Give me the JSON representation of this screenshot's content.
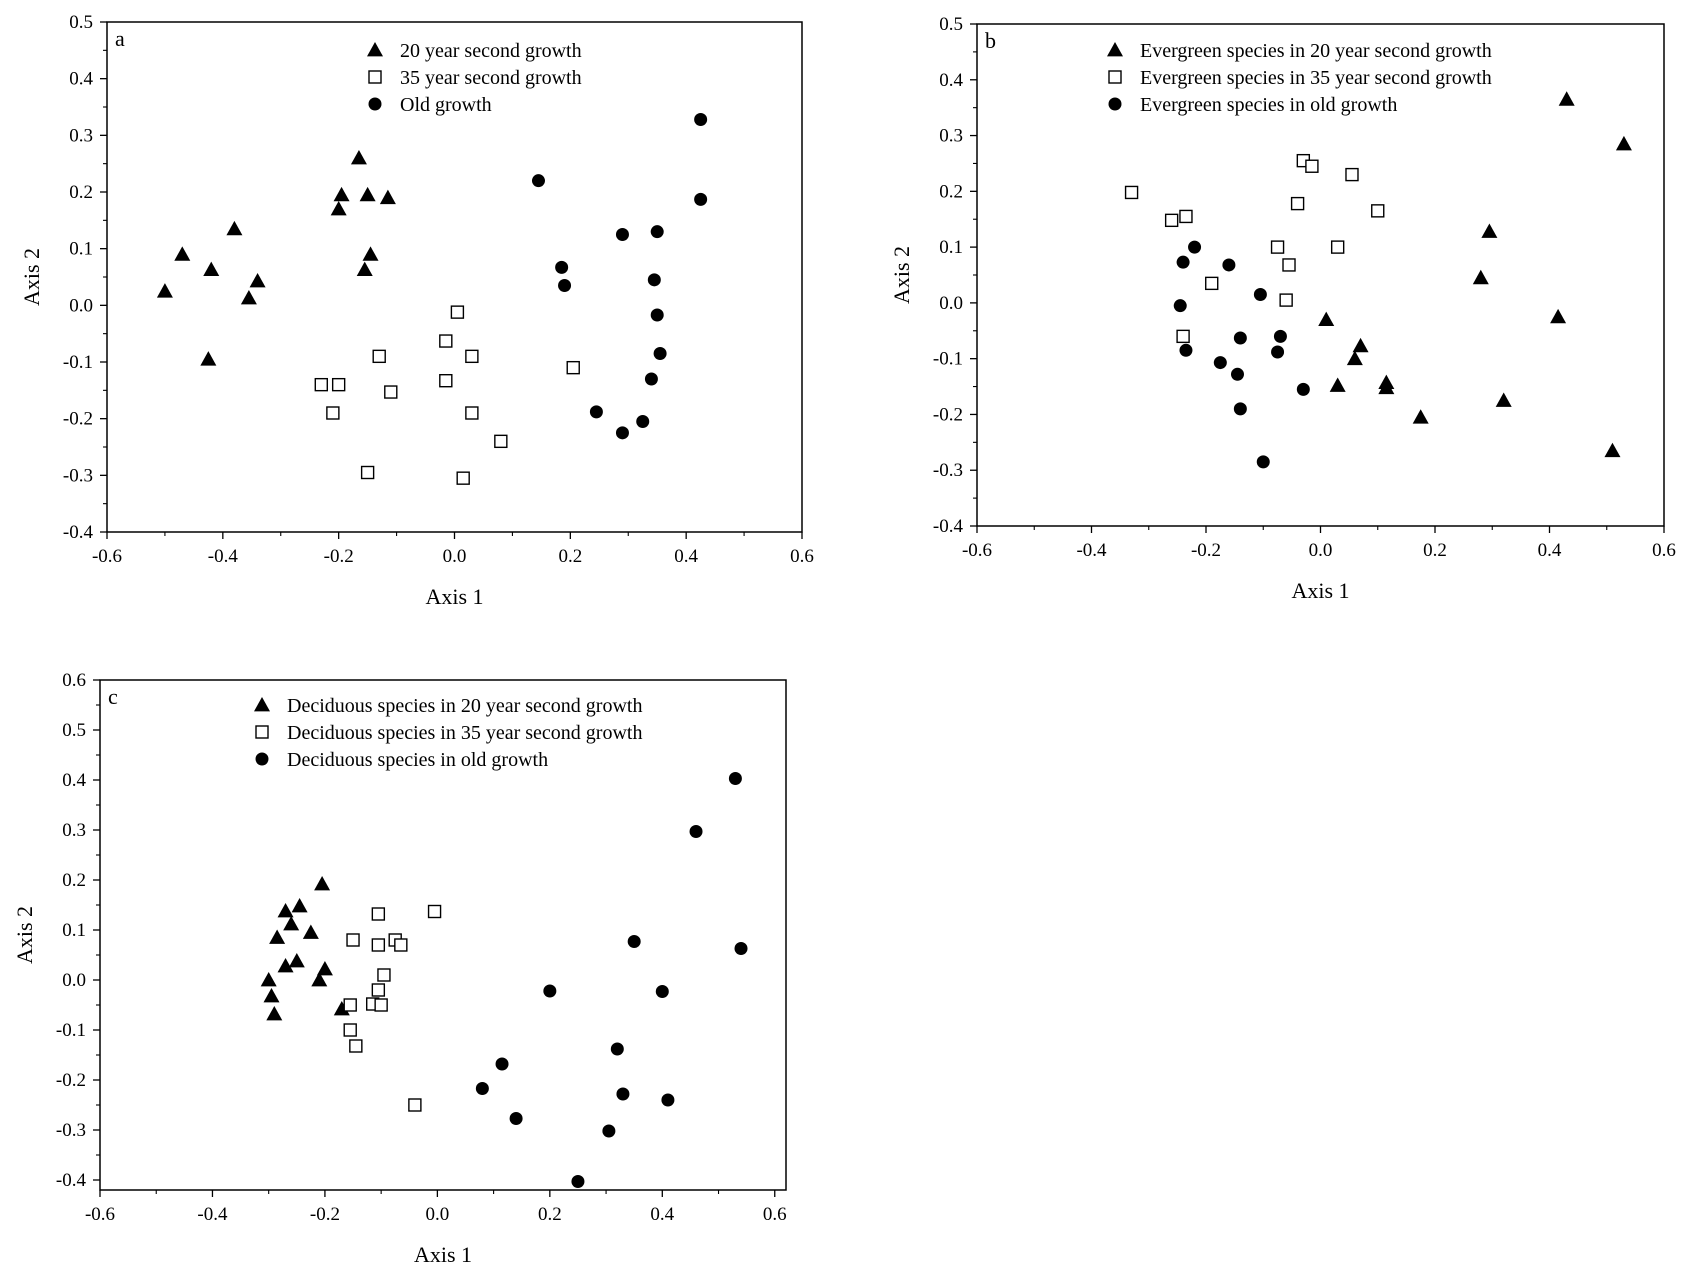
{
  "chart_data": [
    {
      "type": "scatter",
      "panel_label": "a",
      "xlabel": "Axis 1",
      "ylabel": "Axis 2",
      "xlim": [
        -0.6,
        0.6
      ],
      "ylim": [
        -0.4,
        0.5
      ],
      "xticks": [
        -0.6,
        -0.4,
        -0.2,
        0.0,
        0.2,
        0.4,
        0.6
      ],
      "yticks": [
        -0.4,
        -0.3,
        -0.2,
        -0.1,
        0.0,
        0.1,
        0.2,
        0.3,
        0.4,
        0.5
      ],
      "xtick_labels": [
        "-0.6",
        "-0.4",
        "-0.2",
        "0.0",
        "0.2",
        "0.4",
        "0.6"
      ],
      "ytick_labels": [
        "-0.4",
        "-0.3",
        "-0.2",
        "-0.1",
        "0.0",
        "0.1",
        "0.2",
        "0.3",
        "0.4",
        "0.5"
      ],
      "legend_position": "top-center",
      "series": [
        {
          "name": "20 year second growth",
          "marker": "filled-triangle",
          "color": "#000000",
          "points": [
            [
              -0.5,
              0.025
            ],
            [
              -0.47,
              0.09
            ],
            [
              -0.42,
              0.063
            ],
            [
              -0.38,
              0.135
            ],
            [
              -0.355,
              0.013
            ],
            [
              -0.34,
              0.043
            ],
            [
              -0.425,
              -0.095
            ],
            [
              -0.2,
              0.17
            ],
            [
              -0.195,
              0.195
            ],
            [
              -0.165,
              0.26
            ],
            [
              -0.15,
              0.195
            ],
            [
              -0.145,
              0.09
            ],
            [
              -0.155,
              0.063
            ],
            [
              -0.115,
              0.19
            ]
          ]
        },
        {
          "name": "35 year second growth",
          "marker": "open-square",
          "color": "#000000",
          "points": [
            [
              0.005,
              -0.012
            ],
            [
              -0.015,
              -0.063
            ],
            [
              0.03,
              -0.09
            ],
            [
              -0.13,
              -0.09
            ],
            [
              -0.23,
              -0.14
            ],
            [
              -0.2,
              -0.14
            ],
            [
              -0.015,
              -0.133
            ],
            [
              -0.11,
              -0.153
            ],
            [
              -0.21,
              -0.19
            ],
            [
              0.03,
              -0.19
            ],
            [
              0.08,
              -0.24
            ],
            [
              -0.15,
              -0.295
            ],
            [
              0.015,
              -0.305
            ],
            [
              0.205,
              -0.11
            ]
          ]
        },
        {
          "name": "Old growth",
          "marker": "filled-circle",
          "color": "#000000",
          "points": [
            [
              0.145,
              0.22
            ],
            [
              0.425,
              0.328
            ],
            [
              0.425,
              0.187
            ],
            [
              0.29,
              0.125
            ],
            [
              0.35,
              0.13
            ],
            [
              0.185,
              0.067
            ],
            [
              0.19,
              0.035
            ],
            [
              0.345,
              0.045
            ],
            [
              0.35,
              -0.017
            ],
            [
              0.355,
              -0.085
            ],
            [
              0.34,
              -0.13
            ],
            [
              0.245,
              -0.188
            ],
            [
              0.325,
              -0.205
            ],
            [
              0.29,
              -0.225
            ]
          ]
        }
      ]
    },
    {
      "type": "scatter",
      "panel_label": "b",
      "xlabel": "Axis 1",
      "ylabel": "Axis 2",
      "xlim": [
        -0.6,
        0.6
      ],
      "ylim": [
        -0.4,
        0.5
      ],
      "xticks": [
        -0.6,
        -0.4,
        -0.2,
        0.0,
        0.2,
        0.4,
        0.6
      ],
      "yticks": [
        -0.4,
        -0.3,
        -0.2,
        -0.1,
        0.0,
        0.1,
        0.2,
        0.3,
        0.4,
        0.5
      ],
      "xtick_labels": [
        "-0.6",
        "-0.4",
        "-0.2",
        "0.0",
        "0.2",
        "0.4",
        "0.6"
      ],
      "ytick_labels": [
        "-0.4",
        "-0.3",
        "-0.2",
        "-0.1",
        "0.0",
        "0.1",
        "0.2",
        "0.3",
        "0.4",
        "0.5"
      ],
      "legend_position": "top-center",
      "series": [
        {
          "name": "Evergreen species in 20 year second growth",
          "marker": "filled-triangle",
          "color": "#000000",
          "points": [
            [
              0.43,
              0.365
            ],
            [
              0.53,
              0.285
            ],
            [
              0.295,
              0.128
            ],
            [
              0.28,
              0.045
            ],
            [
              0.415,
              -0.025
            ],
            [
              0.01,
              -0.03
            ],
            [
              0.07,
              -0.077
            ],
            [
              0.06,
              -0.1
            ],
            [
              0.03,
              -0.148
            ],
            [
              0.115,
              -0.143
            ],
            [
              0.115,
              -0.152
            ],
            [
              0.175,
              -0.205
            ],
            [
              0.32,
              -0.175
            ],
            [
              0.51,
              -0.265
            ]
          ]
        },
        {
          "name": "Evergreen species in 35 year second growth",
          "marker": "open-square",
          "color": "#000000",
          "points": [
            [
              -0.33,
              0.198
            ],
            [
              -0.26,
              0.148
            ],
            [
              -0.235,
              0.155
            ],
            [
              -0.03,
              0.255
            ],
            [
              -0.015,
              0.245
            ],
            [
              0.055,
              0.23
            ],
            [
              -0.04,
              0.178
            ],
            [
              0.1,
              0.165
            ],
            [
              -0.075,
              0.1
            ],
            [
              0.03,
              0.1
            ],
            [
              -0.055,
              0.068
            ],
            [
              -0.19,
              0.035
            ],
            [
              -0.06,
              0.005
            ],
            [
              -0.24,
              -0.06
            ]
          ]
        },
        {
          "name": "Evergreen species in old growth",
          "marker": "filled-circle",
          "color": "#000000",
          "points": [
            [
              -0.22,
              0.1
            ],
            [
              -0.24,
              0.073
            ],
            [
              -0.16,
              0.068
            ],
            [
              -0.105,
              0.015
            ],
            [
              -0.245,
              -0.005
            ],
            [
              -0.14,
              -0.063
            ],
            [
              -0.07,
              -0.06
            ],
            [
              -0.235,
              -0.085
            ],
            [
              -0.075,
              -0.088
            ],
            [
              -0.175,
              -0.107
            ],
            [
              -0.145,
              -0.128
            ],
            [
              -0.03,
              -0.155
            ],
            [
              -0.14,
              -0.19
            ],
            [
              -0.1,
              -0.285
            ]
          ]
        }
      ]
    },
    {
      "type": "scatter",
      "panel_label": "c",
      "xlabel": "Axis 1",
      "ylabel": "Axis 2",
      "xlim": [
        -0.6,
        0.62
      ],
      "ylim": [
        -0.42,
        0.6
      ],
      "xticks": [
        -0.6,
        -0.4,
        -0.2,
        0.0,
        0.2,
        0.4,
        0.6
      ],
      "yticks": [
        -0.4,
        -0.3,
        -0.2,
        -0.1,
        0.0,
        0.1,
        0.2,
        0.3,
        0.4,
        0.5,
        0.6
      ],
      "xtick_labels": [
        "-0.6",
        "-0.4",
        "-0.2",
        "0.0",
        "0.2",
        "0.4",
        "0.6"
      ],
      "ytick_labels": [
        "-0.4",
        "-0.3",
        "-0.2",
        "-0.1",
        "0.0",
        "0.1",
        "0.2",
        "0.3",
        "0.4",
        "0.5",
        "0.6"
      ],
      "legend_position": "top-center",
      "series": [
        {
          "name": "Deciduous species in 20 year second growth",
          "marker": "filled-triangle",
          "color": "#000000",
          "points": [
            [
              -0.205,
              0.192
            ],
            [
              -0.245,
              0.148
            ],
            [
              -0.27,
              0.138
            ],
            [
              -0.26,
              0.112
            ],
            [
              -0.225,
              0.095
            ],
            [
              -0.285,
              0.085
            ],
            [
              -0.27,
              0.028
            ],
            [
              -0.25,
              0.038
            ],
            [
              -0.2,
              0.022
            ],
            [
              -0.21,
              0.0
            ],
            [
              -0.3,
              0.0
            ],
            [
              -0.295,
              -0.032
            ],
            [
              -0.29,
              -0.068
            ],
            [
              -0.17,
              -0.058
            ]
          ]
        },
        {
          "name": "Deciduous species in 35 year second growth",
          "marker": "open-square",
          "color": "#000000",
          "points": [
            [
              -0.105,
              0.132
            ],
            [
              -0.005,
              0.137
            ],
            [
              -0.15,
              0.08
            ],
            [
              -0.075,
              0.08
            ],
            [
              -0.065,
              0.07
            ],
            [
              -0.105,
              0.07
            ],
            [
              -0.095,
              0.01
            ],
            [
              -0.105,
              -0.02
            ],
            [
              -0.115,
              -0.048
            ],
            [
              -0.1,
              -0.05
            ],
            [
              -0.155,
              -0.05
            ],
            [
              -0.155,
              -0.1
            ],
            [
              -0.145,
              -0.132
            ],
            [
              -0.04,
              -0.25
            ]
          ]
        },
        {
          "name": "Deciduous species in old growth",
          "marker": "filled-circle",
          "color": "#000000",
          "points": [
            [
              0.53,
              0.403
            ],
            [
              0.46,
              0.297
            ],
            [
              0.35,
              0.077
            ],
            [
              0.54,
              0.063
            ],
            [
              0.2,
              -0.022
            ],
            [
              0.4,
              -0.023
            ],
            [
              0.32,
              -0.138
            ],
            [
              0.115,
              -0.168
            ],
            [
              0.08,
              -0.217
            ],
            [
              0.33,
              -0.228
            ],
            [
              0.41,
              -0.24
            ],
            [
              0.14,
              -0.277
            ],
            [
              0.305,
              -0.302
            ],
            [
              0.25,
              -0.403
            ]
          ]
        }
      ]
    }
  ]
}
